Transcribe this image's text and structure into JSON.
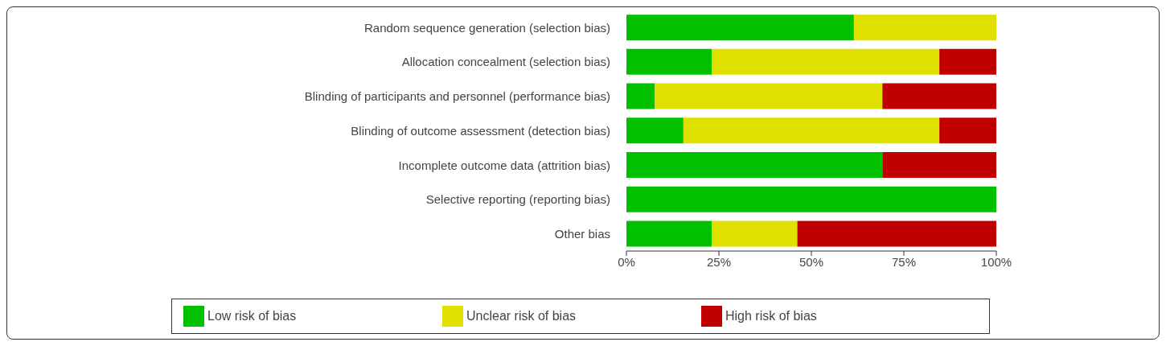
{
  "chart_data": {
    "type": "bar",
    "orientation": "horizontal",
    "stacked": true,
    "categories": [
      "Random sequence generation (selection bias)",
      "Allocation concealment (selection bias)",
      "Blinding of participants and personnel (performance bias)",
      "Blinding of outcome assessment (detection bias)",
      "Incomplete outcome data (attrition bias)",
      "Selective reporting (reporting bias)",
      "Other bias"
    ],
    "series": [
      {
        "name": "Low risk of bias",
        "color": "#00c000",
        "values": [
          61.5,
          23.1,
          7.7,
          15.4,
          69.2,
          100,
          23.1
        ]
      },
      {
        "name": "Unclear risk of bias",
        "color": "#e0e000",
        "values": [
          38.5,
          61.5,
          61.5,
          69.2,
          0,
          0,
          23.1
        ]
      },
      {
        "name": "High risk of bias",
        "color": "#c00000",
        "values": [
          0,
          15.4,
          30.8,
          15.4,
          30.8,
          0,
          53.8
        ]
      }
    ],
    "xlim": [
      0,
      100
    ],
    "xticks": [
      {
        "value": 0,
        "label": "0%"
      },
      {
        "value": 25,
        "label": "25%"
      },
      {
        "value": 50,
        "label": "50%"
      },
      {
        "value": 75,
        "label": "75%"
      },
      {
        "value": 100,
        "label": "100%"
      }
    ],
    "grid": false,
    "legend": "bottom"
  }
}
